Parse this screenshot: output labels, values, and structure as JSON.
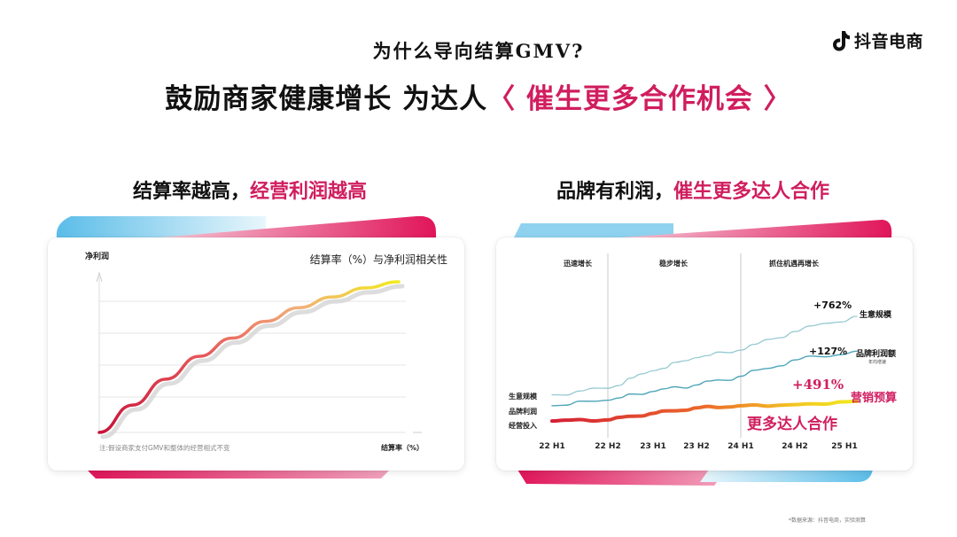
{
  "brand": {
    "logo_text": "抖音电商",
    "logo_icon": "douyin-note-icon"
  },
  "header": {
    "subtitle": "为什么导向结算GMV?",
    "title_main": "鼓励商家健康增长  为达人",
    "title_highlight": "〈 催生更多合作机会 〉"
  },
  "colors": {
    "accent": "#d01e5e",
    "cyan": "#6cc8ea",
    "yellow": "#f2e320",
    "red": "#d41f34"
  },
  "left_panel": {
    "heading_main": "结算率越高，",
    "heading_highlight": "经营利润越高",
    "chart_data": {
      "type": "line",
      "title": "结算率（%）与净利润相关性",
      "xlabel": "结算率（%）",
      "ylabel": "净利润",
      "note": "注:假设商家支付GMV和整体的经营相式不变",
      "grid": true,
      "series": [
        {
          "values": [
            [
              0,
              0
            ],
            [
              10,
              18
            ],
            [
              20,
              35
            ],
            [
              30,
              50
            ],
            [
              40,
              62
            ],
            [
              50,
              73
            ],
            [
              60,
              82
            ],
            [
              70,
              89
            ],
            [
              80,
              95
            ],
            [
              90,
              99
            ]
          ]
        }
      ]
    }
  },
  "right_panel": {
    "heading_main": "品牌有利润，",
    "heading_highlight": "催生更多达人合作",
    "chart_data": {
      "type": "line",
      "categories": [
        "22 H1",
        "22 H2",
        "23 H1",
        "23 H2",
        "24 H1",
        "24 H2",
        "25 H1"
      ],
      "phases": [
        "迅速增长",
        "稳步增长",
        "抓住机遇再增长"
      ],
      "grid": false,
      "series": [
        {
          "name": "生意规模",
          "values": [
            16,
            22,
            38,
            50,
            57,
            74,
            88
          ],
          "change_label": "+762%",
          "start_label": "生意规模"
        },
        {
          "name": "品牌利润额",
          "sub": "年均增速",
          "values": [
            6,
            11,
            19,
            25,
            33,
            48,
            56
          ],
          "change_label": "+127%",
          "start_label": "品牌利润"
        },
        {
          "name": "营销预算",
          "values": [
            -8,
            -7,
            -1,
            4,
            6,
            7,
            10
          ],
          "change_label": "+491%",
          "start_label": "经营投入"
        }
      ],
      "annotation": "更多达人合作"
    }
  },
  "footnote": "*数据来源：抖音电商，实验测算"
}
